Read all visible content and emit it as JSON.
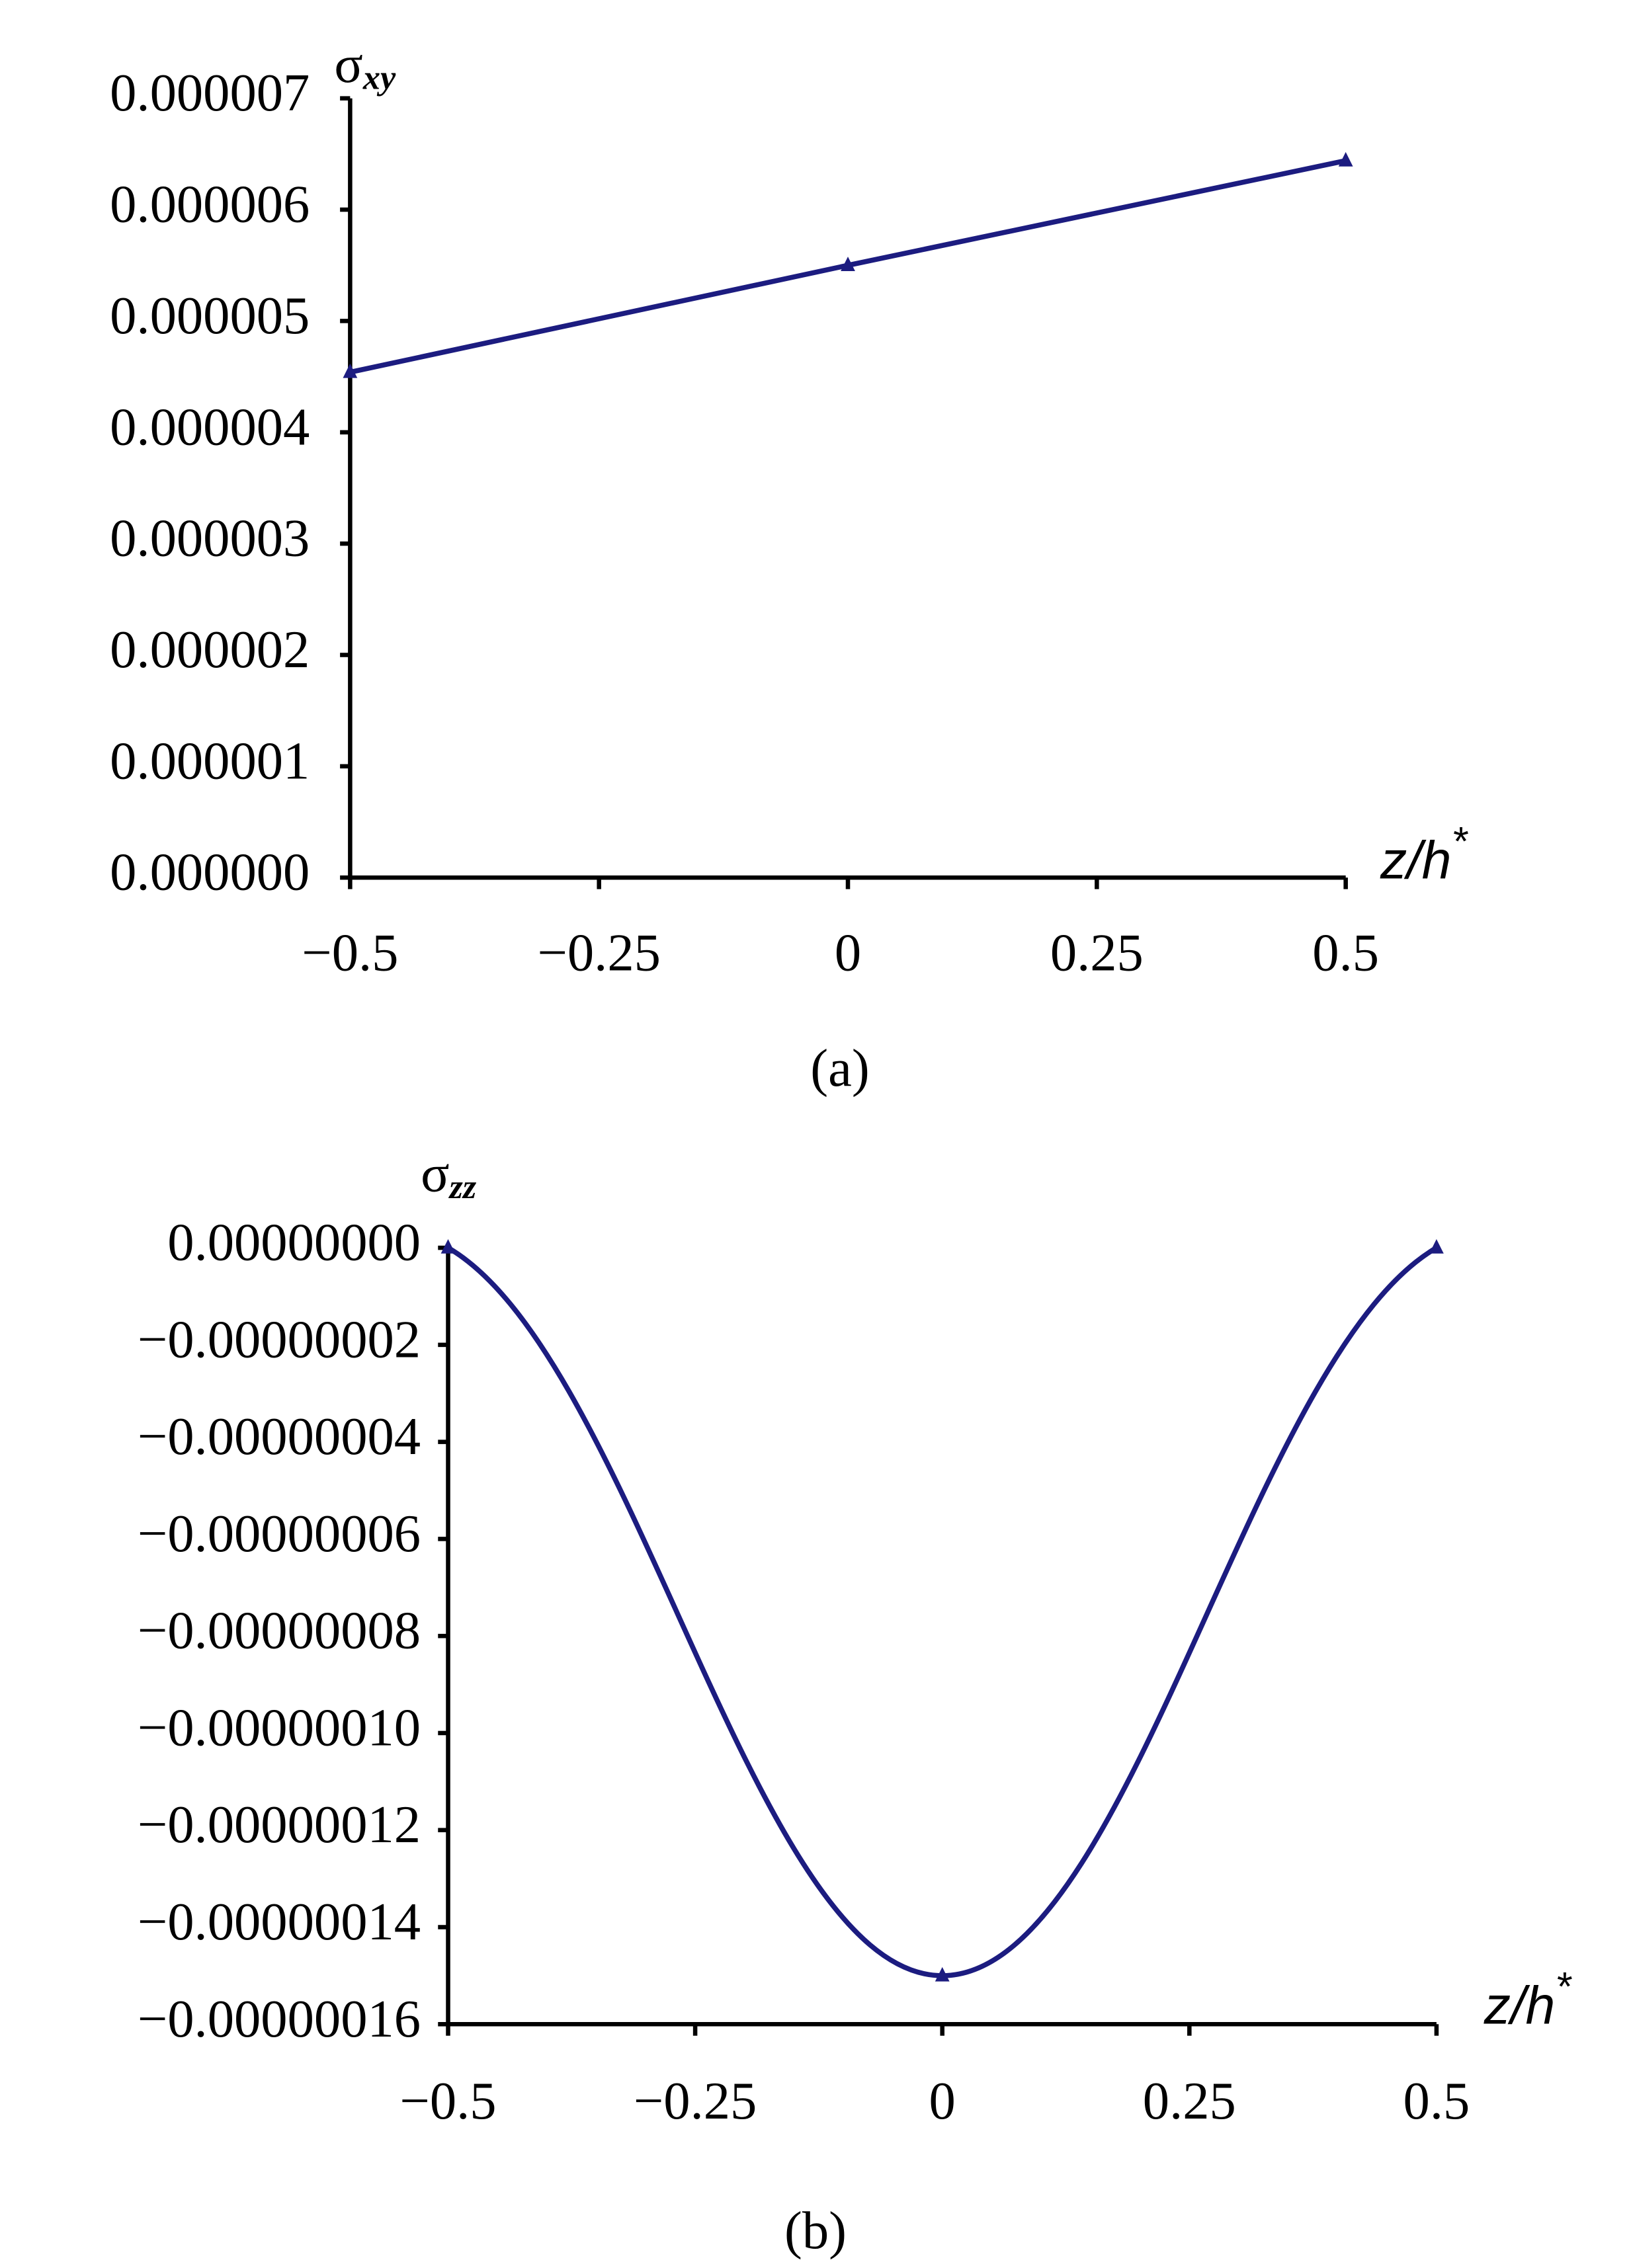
{
  "chart_data": [
    {
      "type": "line",
      "caption": "(a)",
      "ylabel": [
        "σ",
        "xy"
      ],
      "xlabel": [
        "z/h",
        "*"
      ],
      "x": [
        -0.5,
        0,
        0.5
      ],
      "series": [
        {
          "color": "#1c1c80",
          "values": [
            4.54e-06,
            5.5e-06,
            6.44e-06
          ]
        }
      ],
      "smooth": false,
      "xlim": [
        -0.5,
        0.5
      ],
      "xticks": [
        {
          "value": -0.5,
          "label": "−0.5"
        },
        {
          "value": -0.25,
          "label": "−0.25"
        },
        0,
        0.25,
        0.5
      ],
      "ylim": [
        0,
        7e-06
      ],
      "yticks": [
        {
          "value": 0,
          "label": "0.000000"
        },
        {
          "value": 1e-06,
          "label": "0.000001"
        },
        {
          "value": 2e-06,
          "label": "0.000002"
        },
        {
          "value": 3e-06,
          "label": "0.000003"
        },
        {
          "value": 4e-06,
          "label": "0.000004"
        },
        {
          "value": 5e-06,
          "label": "0.000005"
        },
        {
          "value": 6e-06,
          "label": "0.000006"
        },
        {
          "value": 7e-06,
          "label": "0.000007"
        }
      ],
      "grid": false
    },
    {
      "type": "line",
      "caption": "(b)",
      "ylabel": [
        "σ",
        "zz"
      ],
      "xlabel": [
        "z/h",
        "*"
      ],
      "x": [
        -0.5,
        0,
        0.5
      ],
      "series": [
        {
          "color": "#1c1c80",
          "values": [
            0,
            -1.5e-07,
            0
          ]
        }
      ],
      "smooth": true,
      "xlim": [
        -0.5,
        0.5
      ],
      "xticks": [
        {
          "value": -0.5,
          "label": "−0.5"
        },
        {
          "value": -0.25,
          "label": "−0.25"
        },
        0,
        0.25,
        0.5
      ],
      "ylim": [
        -1.6e-07,
        0
      ],
      "yticks": [
        {
          "value": 0,
          "label": "0.00000000"
        },
        {
          "value": -2e-08,
          "label": "−0.00000002"
        },
        {
          "value": -4e-08,
          "label": "−0.00000004"
        },
        {
          "value": -6e-08,
          "label": "−0.00000006"
        },
        {
          "value": -8e-08,
          "label": "−0.00000008"
        },
        {
          "value": -1e-07,
          "label": "−0.00000010"
        },
        {
          "value": -1.2e-07,
          "label": "−0.00000012"
        },
        {
          "value": -1.4e-07,
          "label": "−0.00000014"
        },
        {
          "value": -1.6e-07,
          "label": "−0.00000016"
        }
      ],
      "grid": false
    }
  ]
}
